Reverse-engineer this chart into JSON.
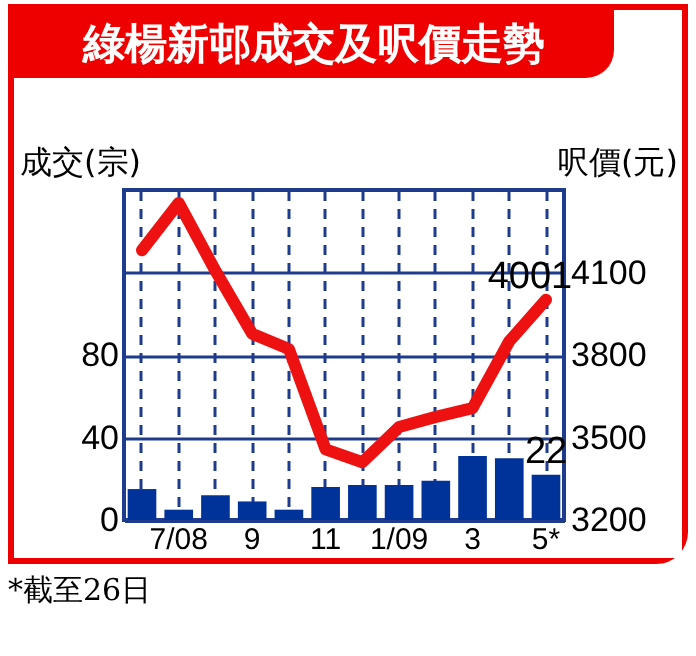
{
  "chart_data": {
    "type": "bar",
    "title": "綠楊新邨成交及呎價走勢",
    "ylabel": "成交(宗)",
    "y2label": "呎價(元)",
    "annotations": [
      "*截至26日"
    ],
    "categories": [
      null,
      "7/08",
      null,
      "9",
      null,
      "11",
      null,
      "1/09",
      null,
      "3",
      null,
      "5*"
    ],
    "series": [
      {
        "color": "#003399",
        "values": [
          15,
          5,
          12,
          9,
          5,
          16,
          17,
          17,
          19,
          31,
          30,
          22
        ],
        "value_labels": [
          null,
          null,
          null,
          null,
          null,
          null,
          null,
          null,
          null,
          null,
          null,
          "22"
        ]
      },
      {
        "type": "line",
        "axis": "y2",
        "color": "#ee1111",
        "values": [
          4181,
          4353,
          4106,
          3877,
          3822,
          3457,
          3410,
          3538,
          3575,
          3607,
          3850,
          4001
        ],
        "value_labels": [
          null,
          null,
          null,
          null,
          null,
          null,
          null,
          null,
          null,
          null,
          null,
          "4001"
        ]
      }
    ],
    "ylim": [
      0,
      160
    ],
    "yticks": [
      0,
      40,
      80,
      {
        "value": 120,
        "label": null
      }
    ],
    "y2lim": [
      3200,
      4400
    ],
    "y2ticks": [
      3200,
      3500,
      3800,
      4100
    ],
    "grid": true,
    "marker": "none",
    "line_style": "solid"
  }
}
